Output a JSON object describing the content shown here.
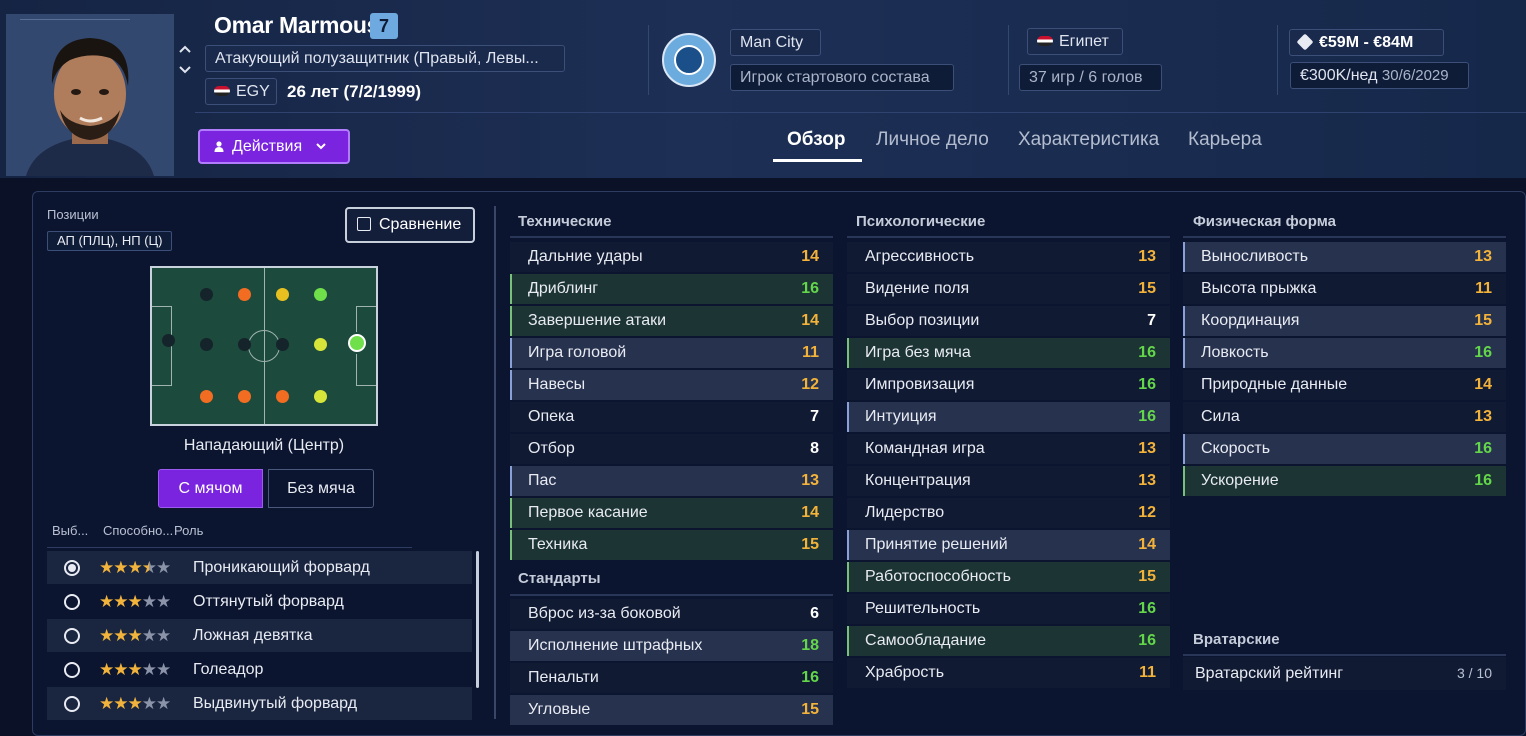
{
  "player": {
    "name": "Omar Marmoush",
    "number": "7",
    "position": "Атакующий полузащитник (Правый, Левы...",
    "nation_code": "EGY",
    "age": "26 лет (7/2/1999)"
  },
  "actions_label": "Действия",
  "club": {
    "name": "Man City",
    "role": "Игрок стартового состава"
  },
  "country": {
    "name": "Египет",
    "caps": "37 игр / 6 голов"
  },
  "contract": {
    "value": "€59M - €84M",
    "wage": "€300K/нед",
    "expiry": "30/6/2029"
  },
  "tabs": [
    "Обзор",
    "Личное дело",
    "Характеристика",
    "Карьера"
  ],
  "positions": {
    "label": "Позиции",
    "value": "АП (ПЛЦ), НП (Ц)"
  },
  "compare_label": "Сравнение",
  "selected_role_title": "Нападающий (Центр)",
  "toggle": {
    "with_ball": "С мячом",
    "without_ball": "Без мяча"
  },
  "roles_header": {
    "select": "Выб...",
    "ability": "Способно...",
    "role": "Роль"
  },
  "roles": [
    {
      "name": "Проникающий форвард",
      "stars": 3.5,
      "selected": true
    },
    {
      "name": "Оттянутый форвард",
      "stars": 3,
      "selected": false
    },
    {
      "name": "Ложная девятка",
      "stars": 3,
      "selected": false
    },
    {
      "name": "Голеадор",
      "stars": 3,
      "selected": false
    },
    {
      "name": "Выдвинутый форвард",
      "stars": 3,
      "selected": false
    }
  ],
  "technical": {
    "title": "Технические",
    "items": [
      {
        "name": "Дальние удары",
        "value": "14"
      },
      {
        "name": "Дриблинг",
        "value": "16"
      },
      {
        "name": "Завершение атаки",
        "value": "14"
      },
      {
        "name": "Игра головой",
        "value": "11"
      },
      {
        "name": "Навесы",
        "value": "12"
      },
      {
        "name": "Опека",
        "value": "7"
      },
      {
        "name": "Отбор",
        "value": "8"
      },
      {
        "name": "Пас",
        "value": "13"
      },
      {
        "name": "Первое касание",
        "value": "14"
      },
      {
        "name": "Техника",
        "value": "15"
      }
    ]
  },
  "set_pieces": {
    "title": "Стандарты",
    "items": [
      {
        "name": "Вброс из-за боковой",
        "value": "6"
      },
      {
        "name": "Исполнение штрафных",
        "value": "18"
      },
      {
        "name": "Пенальти",
        "value": "16"
      },
      {
        "name": "Угловые",
        "value": "15"
      }
    ]
  },
  "mental": {
    "title": "Психологические",
    "items": [
      {
        "name": "Агрессивность",
        "value": "13"
      },
      {
        "name": "Видение поля",
        "value": "15"
      },
      {
        "name": "Выбор позиции",
        "value": "7"
      },
      {
        "name": "Игра без мяча",
        "value": "16"
      },
      {
        "name": "Импровизация",
        "value": "16"
      },
      {
        "name": "Интуиция",
        "value": "16"
      },
      {
        "name": "Командная игра",
        "value": "13"
      },
      {
        "name": "Концентрация",
        "value": "13"
      },
      {
        "name": "Лидерство",
        "value": "12"
      },
      {
        "name": "Принятие решений",
        "value": "14"
      },
      {
        "name": "Работоспособность",
        "value": "15"
      },
      {
        "name": "Решительность",
        "value": "16"
      },
      {
        "name": "Самообладание",
        "value": "16"
      },
      {
        "name": "Храбрость",
        "value": "11"
      }
    ]
  },
  "physical": {
    "title": "Физическая форма",
    "items": [
      {
        "name": "Выносливость",
        "value": "13"
      },
      {
        "name": "Высота прыжка",
        "value": "11"
      },
      {
        "name": "Координация",
        "value": "15"
      },
      {
        "name": "Ловкость",
        "value": "16"
      },
      {
        "name": "Природные данные",
        "value": "14"
      },
      {
        "name": "Сила",
        "value": "13"
      },
      {
        "name": "Скорость",
        "value": "16"
      },
      {
        "name": "Ускорение",
        "value": "16"
      }
    ]
  },
  "goalkeeping": {
    "title": "Вратарские",
    "rating_label": "Вратарский рейтинг",
    "rating_value": "3 / 10"
  },
  "colors": {
    "accent": "#7a24e0",
    "value_green": "#63d64a",
    "value_orange": "#f3b33a"
  }
}
